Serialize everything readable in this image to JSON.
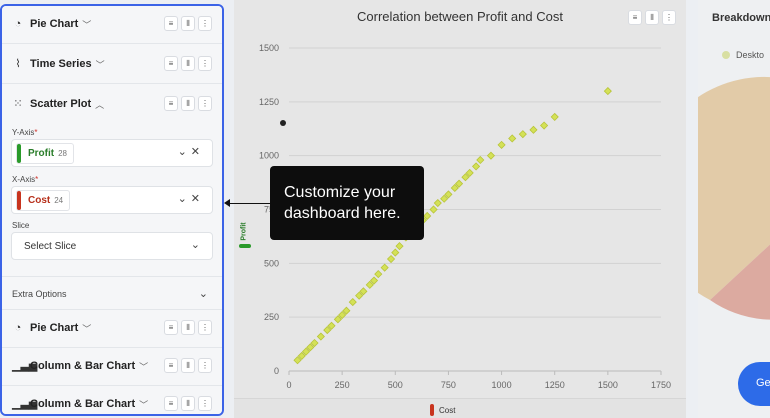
{
  "sidebar": {
    "rows": [
      {
        "title": "Pie Chart",
        "icon": "pie-chart-icon"
      },
      {
        "title": "Time Series",
        "icon": "time-series-icon"
      },
      {
        "title": "Scatter Plot",
        "icon": "scatter-plot-icon"
      },
      {
        "title": "Pie Chart",
        "icon": "pie-chart-icon"
      },
      {
        "title": "Column & Bar Chart",
        "icon": "bar-chart-icon"
      },
      {
        "title": "Column & Bar Chart",
        "icon": "bar-chart-icon"
      }
    ],
    "y_axis": {
      "label": "Y-Axis",
      "field": "Profit",
      "count": "28",
      "color": "#2a9a2a"
    },
    "x_axis": {
      "label": "X-Axis",
      "field": "Cost",
      "count": "24",
      "color": "#c8341e"
    },
    "slice": {
      "label": "Slice",
      "placeholder": "Select Slice"
    },
    "extra_options": "Extra Options",
    "required_mark": "*"
  },
  "chart": {
    "title": "Correlation between Profit and Cost",
    "x_axis_chip": "Cost",
    "y_axis_chip": "Profit"
  },
  "chart_data": {
    "type": "scatter",
    "title": "Correlation between Profit and Cost",
    "xlabel": "Cost",
    "ylabel": "Profit",
    "xlim": [
      0,
      1750
    ],
    "ylim": [
      0,
      1500
    ],
    "xticks": [
      0,
      250,
      500,
      750,
      1000,
      1250,
      1500,
      1750
    ],
    "yticks": [
      0,
      250,
      500,
      750,
      1000,
      1250,
      1500
    ],
    "grid": true,
    "point_color": "#d4e157",
    "x": [
      40,
      60,
      80,
      100,
      120,
      150,
      180,
      200,
      230,
      250,
      270,
      300,
      330,
      350,
      380,
      400,
      420,
      450,
      480,
      500,
      520,
      550,
      580,
      600,
      630,
      650,
      680,
      700,
      730,
      750,
      780,
      800,
      830,
      850,
      880,
      900,
      950,
      1000,
      1050,
      1100,
      1150,
      1200,
      1250,
      1500
    ],
    "y": [
      50,
      70,
      90,
      110,
      130,
      160,
      190,
      210,
      240,
      260,
      280,
      320,
      350,
      370,
      400,
      420,
      450,
      480,
      520,
      550,
      580,
      620,
      650,
      680,
      700,
      720,
      750,
      780,
      800,
      820,
      850,
      870,
      900,
      920,
      950,
      980,
      1000,
      1050,
      1080,
      1100,
      1120,
      1140,
      1180,
      1300
    ]
  },
  "breakdown": {
    "title": "Breakdown o",
    "legend": "Deskto",
    "button": "Ge"
  },
  "tooltip": {
    "line1": "Customize your",
    "line2": "dashboard here."
  },
  "colors": {
    "accent": "#3b63e7",
    "profit": "#2a9a2a",
    "cost": "#c8341e"
  }
}
